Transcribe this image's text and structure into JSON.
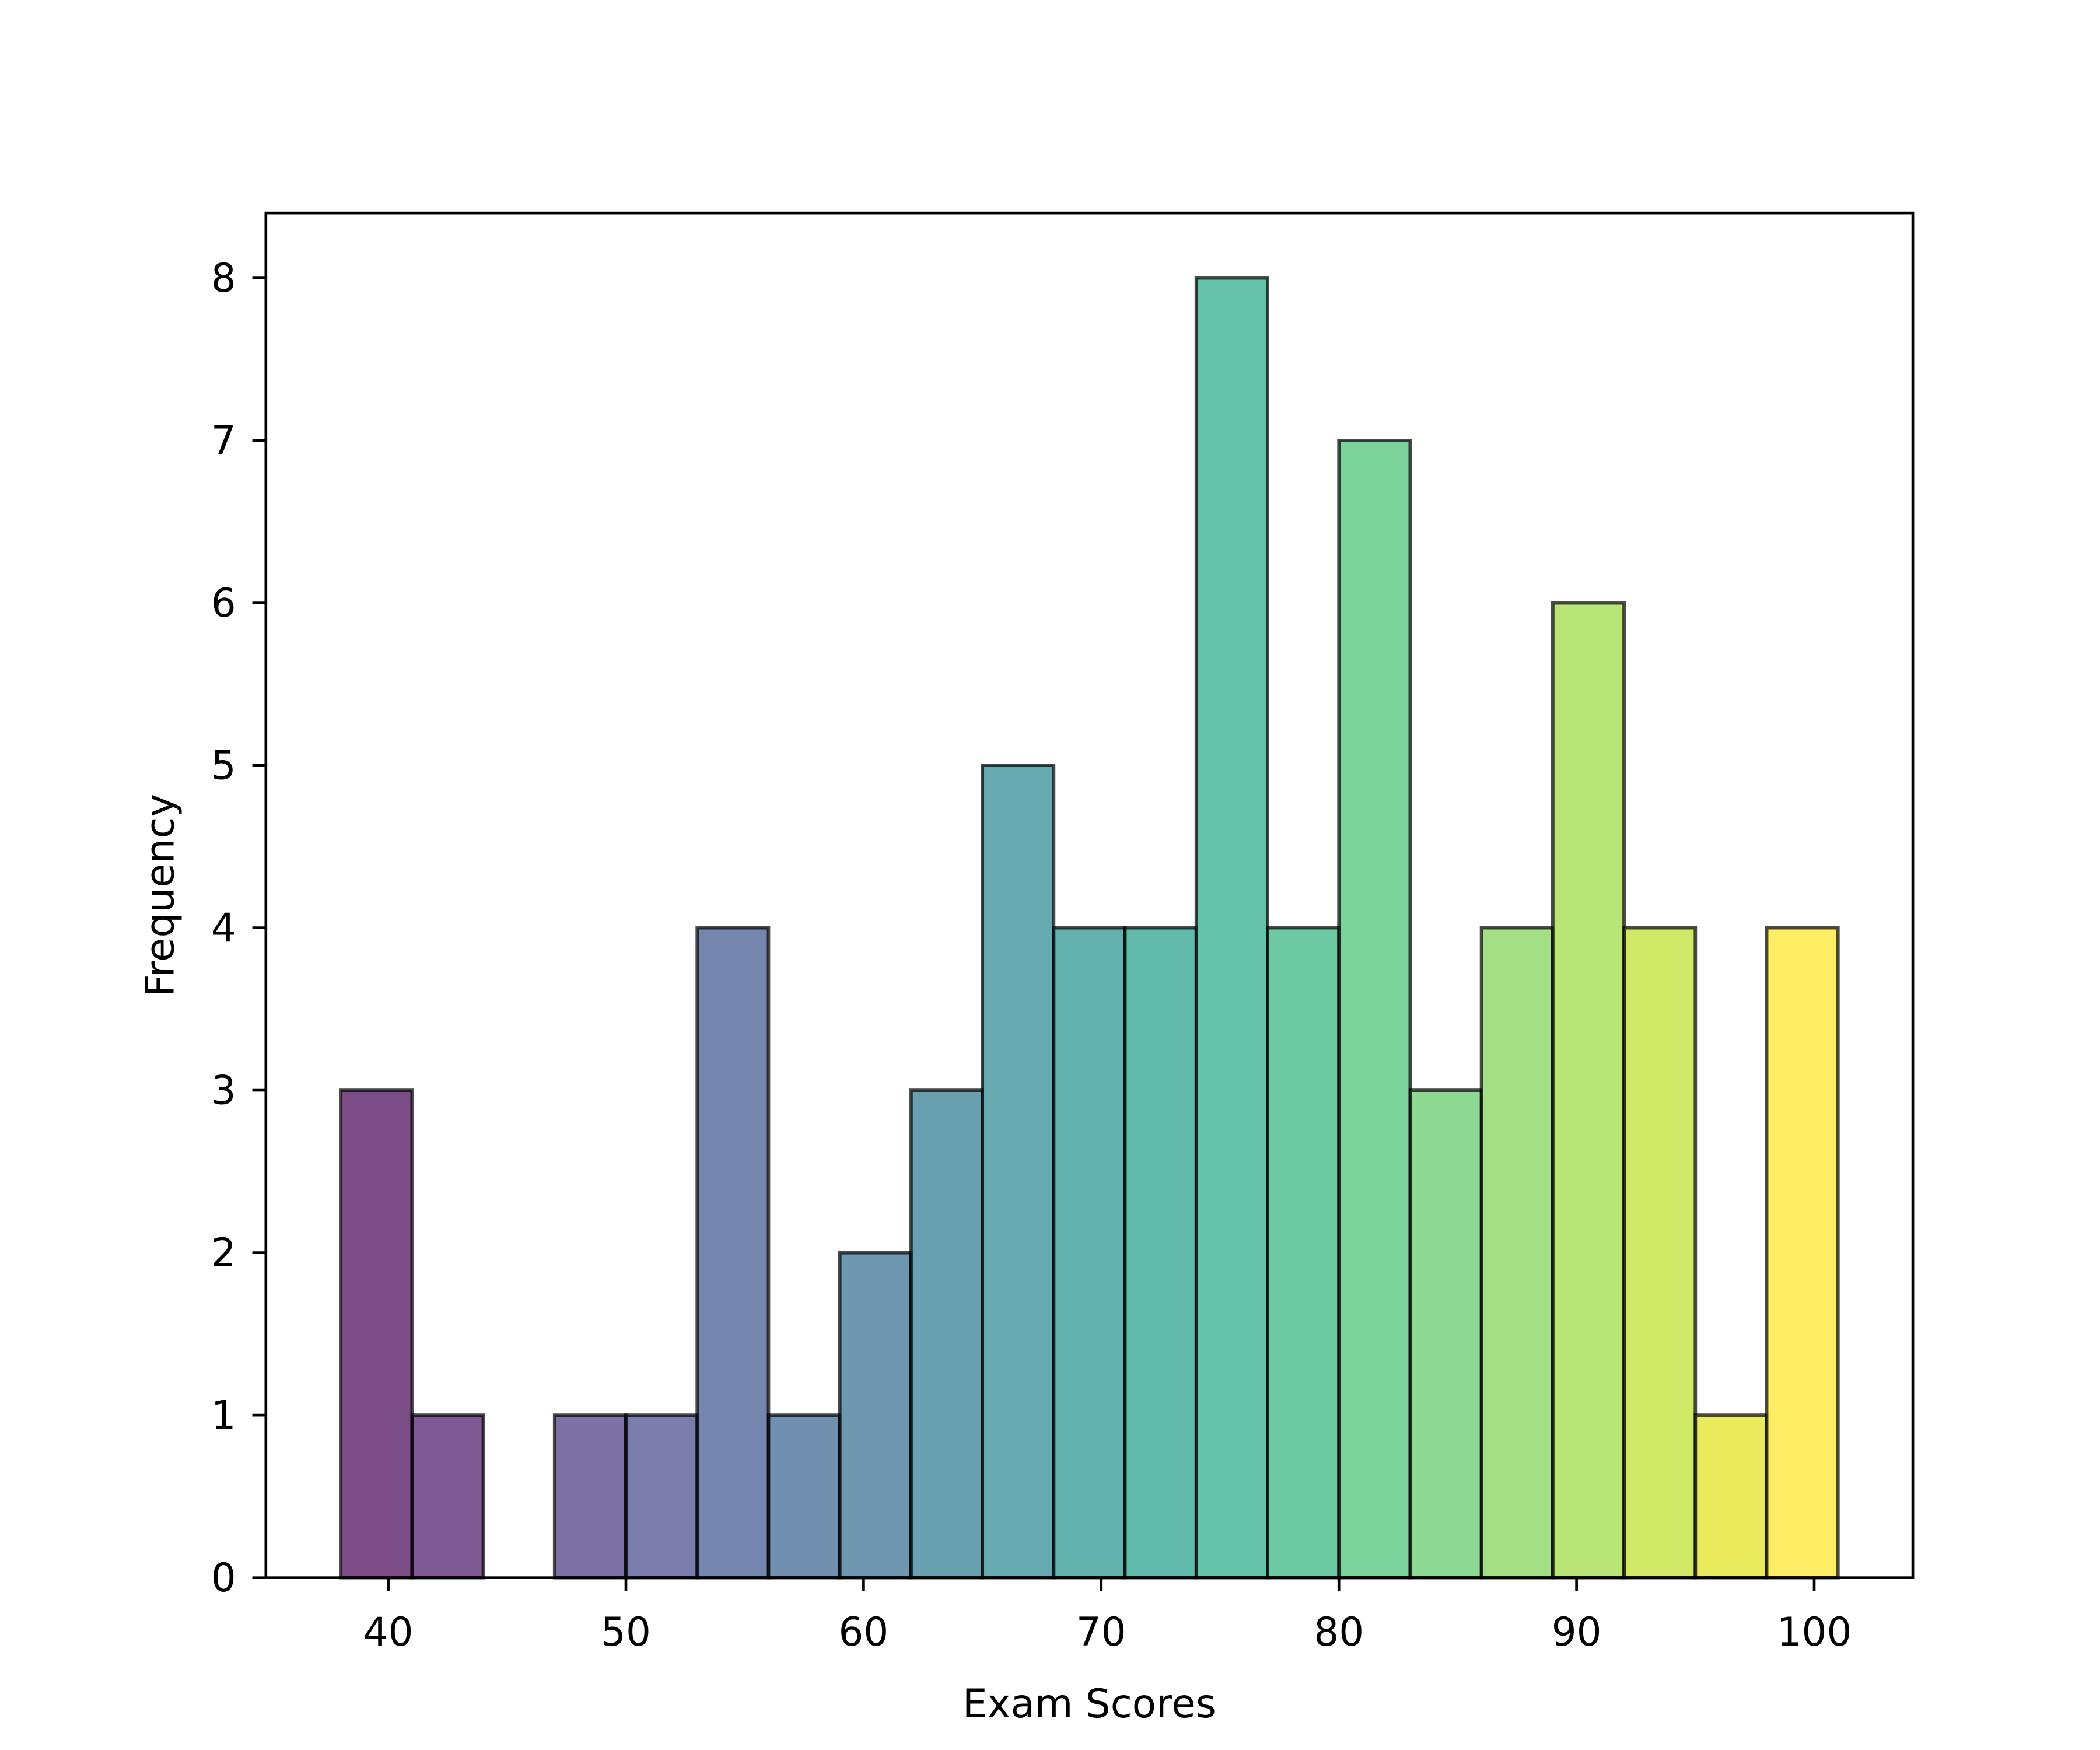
{
  "chart_data": {
    "type": "bar",
    "subtype": "histogram",
    "title": "",
    "xlabel": "Exam Scores",
    "ylabel": "Frequency",
    "bin_edges": [
      38,
      41,
      44,
      47,
      50,
      53,
      56,
      59,
      62,
      65,
      68,
      71,
      74,
      77,
      80,
      83,
      86,
      89,
      92,
      95,
      98,
      101
    ],
    "values": [
      3,
      1,
      0,
      1,
      1,
      4,
      1,
      2,
      3,
      5,
      4,
      4,
      8,
      4,
      7,
      3,
      4,
      6,
      4,
      1,
      4
    ],
    "xlim": [
      34.85,
      104.15
    ],
    "ylim": [
      0,
      8.4
    ],
    "xticks": [
      "40",
      "50",
      "60",
      "70",
      "80",
      "90",
      "100"
    ],
    "yticks": [
      "0",
      "1",
      "2",
      "3",
      "4",
      "5",
      "6",
      "7",
      "8"
    ],
    "grid": false,
    "colormap": "viridis",
    "bar_alpha": 0.7,
    "colors": [
      "#440154",
      "#471365",
      "#482475",
      "#463480",
      "#414487",
      "#3b528b",
      "#355f8d",
      "#2f6c8e",
      "#2a788e",
      "#25848e",
      "#21918c",
      "#1e9c89",
      "#22a884",
      "#2fb47c",
      "#44bf70",
      "#5ec962",
      "#7ad151",
      "#9bd93c",
      "#bddf26",
      "#dfe318",
      "#fde725"
    ]
  }
}
